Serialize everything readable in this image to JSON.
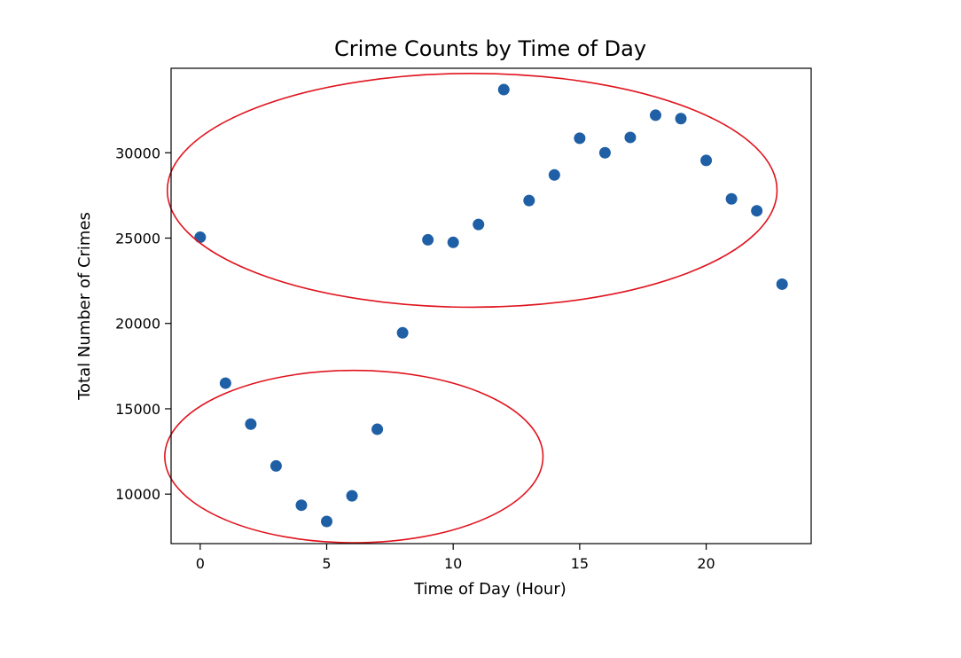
{
  "chart_data": {
    "type": "scatter",
    "title": "Crime Counts by Time of Day",
    "xlabel": "Time of Day (Hour)",
    "ylabel": "Total Number of Crimes",
    "xlim": [
      -1.15,
      24.15
    ],
    "ylim": [
      7100,
      34950
    ],
    "xticks": [
      0,
      5,
      10,
      15,
      20
    ],
    "yticks": [
      10000,
      15000,
      20000,
      25000,
      30000
    ],
    "xtick_labels": [
      "0",
      "5",
      "10",
      "15",
      "20"
    ],
    "ytick_labels": [
      "10000",
      "15000",
      "20000",
      "25000",
      "30000"
    ],
    "grid": false,
    "marker_color": "#1f5fa5",
    "annotation_color": "#e0141e",
    "x": [
      0,
      1,
      2,
      3,
      4,
      5,
      6,
      7,
      8,
      9,
      10,
      11,
      12,
      13,
      14,
      15,
      16,
      17,
      18,
      19,
      20,
      21,
      22,
      23
    ],
    "y": [
      25050,
      16500,
      14100,
      11650,
      9350,
      8400,
      9900,
      13800,
      19450,
      24900,
      24750,
      25800,
      33700,
      27200,
      28700,
      30850,
      30000,
      30900,
      32200,
      32000,
      29550,
      27300,
      26600,
      22300
    ],
    "annotations": [
      {
        "shape": "ellipse",
        "x_range": [
          -1.3,
          22.8
        ],
        "y_range": [
          20950,
          34650
        ]
      },
      {
        "shape": "ellipse",
        "x_range": [
          -1.4,
          13.55
        ],
        "y_range": [
          7150,
          17250
        ]
      }
    ]
  }
}
